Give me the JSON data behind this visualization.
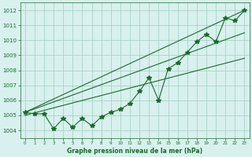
{
  "title": "Graphe pression niveau de la mer (hPa)",
  "x": [
    0,
    1,
    2,
    3,
    4,
    5,
    6,
    7,
    8,
    9,
    10,
    11,
    12,
    13,
    14,
    15,
    16,
    17,
    18,
    19,
    20,
    21,
    22,
    23
  ],
  "pressure_main": [
    1005.2,
    1005.1,
    1005.1,
    1004.1,
    1004.8,
    1004.2,
    1004.8,
    1004.3,
    1004.9,
    1005.2,
    1005.4,
    1005.8,
    1006.6,
    1007.5,
    1006.0,
    1008.1,
    1008.5,
    1009.2,
    1009.9,
    1010.4,
    1009.9,
    1011.5,
    1011.3,
    1012.0
  ],
  "trend_lines": [
    {
      "x": [
        0,
        23
      ],
      "y": [
        1005.2,
        1012.0
      ]
    },
    {
      "x": [
        0,
        23
      ],
      "y": [
        1005.2,
        1010.5
      ]
    },
    {
      "x": [
        0,
        23
      ],
      "y": [
        1005.0,
        1008.8
      ]
    }
  ],
  "ylim": [
    1003.5,
    1012.5
  ],
  "yticks": [
    1004,
    1005,
    1006,
    1007,
    1008,
    1009,
    1010,
    1011,
    1012
  ],
  "xlim": [
    -0.5,
    23.5
  ],
  "bg_color": "#d8f0ee",
  "grid_color": "#9ecebe",
  "line_color": "#1a6b2a",
  "marker": "*",
  "marker_size": 4,
  "linewidth": 0.8
}
